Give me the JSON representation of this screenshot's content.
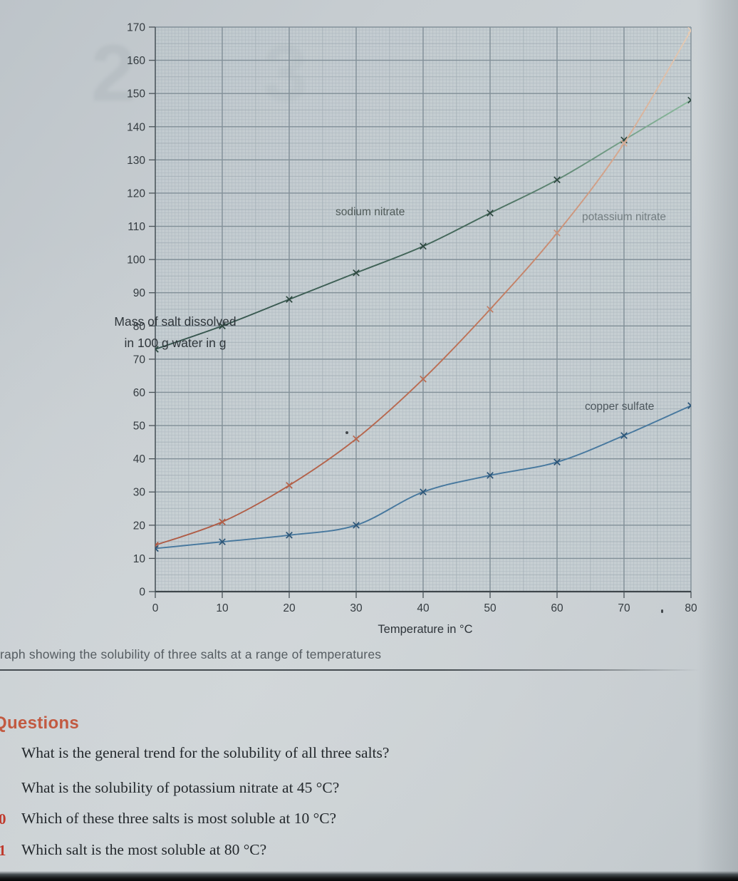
{
  "page": {
    "ghost_text": "2 3",
    "figure_caption": "raph showing the solubility of three salts at a range of temperatures",
    "questions_heading": "Questions",
    "questions": [
      {
        "number": "",
        "text": "What is the general trend for the solubility of all three salts?"
      },
      {
        "number": "",
        "text": "What is the solubility of potassium nitrate at 45 °C?"
      },
      {
        "number": "0",
        "text": "Which of these three salts is most soluble at 10 °C?"
      },
      {
        "number": "1",
        "text": "Which salt is the most soluble at 80 °C?"
      }
    ]
  },
  "chart_data": {
    "type": "line",
    "title": "",
    "xlabel": "Temperature in °C",
    "ylabel": "Mass of salt dissolved in 100 g water in g",
    "ylabel_lines": [
      "Mass of salt dissolved",
      "in 100 g water in g"
    ],
    "xlim": [
      0,
      80
    ],
    "ylim": [
      0,
      170
    ],
    "x_ticks": [
      0,
      10,
      20,
      30,
      40,
      50,
      60,
      70,
      80
    ],
    "y_ticks": [
      0,
      10,
      20,
      30,
      40,
      50,
      60,
      70,
      80,
      90,
      100,
      110,
      120,
      130,
      140,
      150,
      160,
      170
    ],
    "grid": true,
    "marker": "x",
    "legend_position": "inline-labels",
    "x": [
      0,
      10,
      20,
      30,
      40,
      50,
      60,
      70,
      80
    ],
    "series": [
      {
        "name": "sodium nitrate",
        "color": "#3c5b51",
        "values": [
          73,
          80,
          88,
          96,
          104,
          114,
          124,
          136,
          148
        ]
      },
      {
        "name": "potassium nitrate",
        "color": "#b4604a",
        "values": [
          14,
          21,
          32,
          46,
          64,
          85,
          108,
          135,
          169
        ]
      },
      {
        "name": "copper sulfate",
        "color": "#47789e",
        "values": [
          13,
          15,
          17,
          20,
          30,
          35,
          39,
          47,
          56
        ]
      }
    ]
  }
}
